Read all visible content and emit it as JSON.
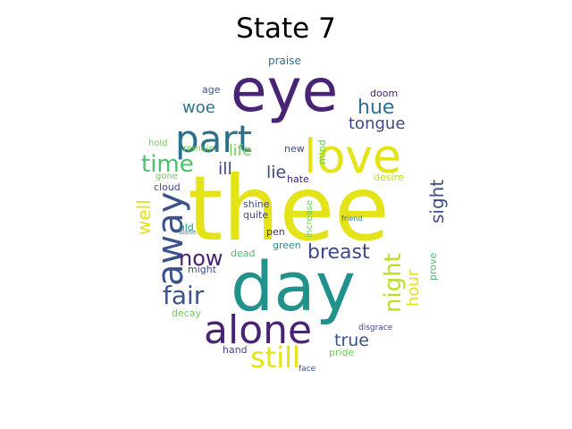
{
  "title": "State 7",
  "words": [
    {
      "text": "thee",
      "color": "#e3e318"
    },
    {
      "text": "eye",
      "color": "#482475"
    },
    {
      "text": "day",
      "color": "#21918c"
    },
    {
      "text": "love",
      "color": "#e3e318"
    },
    {
      "text": "part",
      "color": "#2d708e"
    },
    {
      "text": "alone",
      "color": "#482475"
    },
    {
      "text": "away",
      "color": "#3b528b"
    },
    {
      "text": "night",
      "color": "#bddf26"
    },
    {
      "text": "still",
      "color": "#e3e318"
    },
    {
      "text": "fair",
      "color": "#3b528b"
    },
    {
      "text": "breast",
      "color": "#3e4989"
    },
    {
      "text": "time",
      "color": "#4ac16d"
    },
    {
      "text": "now",
      "color": "#482475"
    },
    {
      "text": "sight",
      "color": "#3e4989"
    },
    {
      "text": "true",
      "color": "#3b528b"
    },
    {
      "text": "hue",
      "color": "#2d708e"
    },
    {
      "text": "tongue",
      "color": "#3e4989"
    },
    {
      "text": "well",
      "color": "#e3e318"
    },
    {
      "text": "hour",
      "color": "#e3e318"
    },
    {
      "text": "woe",
      "color": "#2d708e"
    },
    {
      "text": "life",
      "color": "#6ece58"
    },
    {
      "text": "ill",
      "color": "#3e4989"
    },
    {
      "text": "lie",
      "color": "#3e4989"
    },
    {
      "text": "praise",
      "color": "#2d708e"
    },
    {
      "text": "age",
      "color": "#3b528b"
    },
    {
      "text": "doom",
      "color": "#482475"
    },
    {
      "text": "hold",
      "color": "#6ece58"
    },
    {
      "text": "remain",
      "color": "#6ece58"
    },
    {
      "text": "new",
      "color": "#3e4989"
    },
    {
      "text": "mind",
      "color": "#6ece58"
    },
    {
      "text": "gone",
      "color": "#6ece58"
    },
    {
      "text": "cloud",
      "color": "#3e4989"
    },
    {
      "text": "hate",
      "color": "#482475"
    },
    {
      "text": "desire",
      "color": "#bddf26"
    },
    {
      "text": "shine",
      "color": "#3e4989"
    },
    {
      "text": "quite",
      "color": "#3e4989"
    },
    {
      "text": "increase",
      "color": "#6ece58"
    },
    {
      "text": "old",
      "color": "#21918c"
    },
    {
      "text": "alone",
      "color": "#21918c"
    },
    {
      "text": "pen",
      "color": "#482475"
    },
    {
      "text": "friend",
      "color": "#2d708e"
    },
    {
      "text": "green",
      "color": "#21918c"
    },
    {
      "text": "might",
      "color": "#3b528b"
    },
    {
      "text": "dead",
      "color": "#4ac16d"
    },
    {
      "text": "prove",
      "color": "#4ac16d"
    },
    {
      "text": "decay",
      "color": "#6ece58"
    },
    {
      "text": "disgrace",
      "color": "#3e4989"
    },
    {
      "text": "hand",
      "color": "#3e4989"
    },
    {
      "text": "pride",
      "color": "#6ece58"
    },
    {
      "text": "face",
      "color": "#3b528b"
    }
  ]
}
